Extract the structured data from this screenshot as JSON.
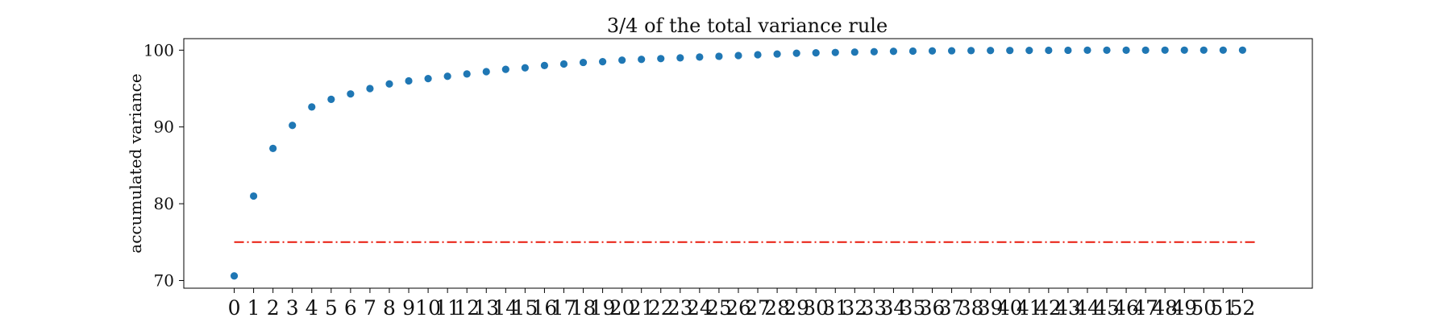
{
  "chart_data": {
    "type": "scatter",
    "title": "3/4 of the total variance rule",
    "xlabel": "",
    "ylabel": "accumulated variance",
    "x": [
      0,
      1,
      2,
      3,
      4,
      5,
      6,
      7,
      8,
      9,
      10,
      11,
      12,
      13,
      14,
      15,
      16,
      17,
      18,
      19,
      20,
      21,
      22,
      23,
      24,
      25,
      26,
      27,
      28,
      29,
      30,
      31,
      32,
      33,
      34,
      35,
      36,
      37,
      38,
      39,
      40,
      41,
      42,
      43,
      44,
      45,
      46,
      47,
      48,
      49,
      50,
      51,
      52
    ],
    "y": [
      70.6,
      81.0,
      87.2,
      90.2,
      92.6,
      93.6,
      94.3,
      95.0,
      95.6,
      96.0,
      96.3,
      96.6,
      96.9,
      97.2,
      97.5,
      97.7,
      98.0,
      98.2,
      98.4,
      98.5,
      98.7,
      98.8,
      98.9,
      99.0,
      99.1,
      99.2,
      99.3,
      99.4,
      99.5,
      99.6,
      99.65,
      99.7,
      99.75,
      99.8,
      99.85,
      99.88,
      99.9,
      99.92,
      99.94,
      99.95,
      99.96,
      99.97,
      99.98,
      99.985,
      99.99,
      99.99,
      99.995,
      99.995,
      100.0,
      100.0,
      100.0,
      100.0,
      100.0
    ],
    "xticks": [
      "0",
      "1",
      "2",
      "3",
      "4",
      "5",
      "6",
      "7",
      "8",
      "9",
      "10",
      "11",
      "12",
      "13",
      "14",
      "15",
      "16",
      "17",
      "18",
      "19",
      "20",
      "21",
      "22",
      "23",
      "24",
      "25",
      "26",
      "27",
      "28",
      "29",
      "30",
      "31",
      "32",
      "33",
      "34",
      "35",
      "36",
      "37",
      "38",
      "39",
      "40",
      "41",
      "42",
      "43",
      "44",
      "45",
      "46",
      "47",
      "48",
      "49",
      "50",
      "51",
      "52"
    ],
    "yticks": [
      70,
      80,
      90,
      100
    ],
    "xlim": [
      -2.6,
      55.6
    ],
    "ylim": [
      69.0,
      101.5
    ],
    "threshold": 75,
    "grid": false,
    "colors": {
      "points": "#1f77b4",
      "threshold": "#e8190b"
    }
  }
}
